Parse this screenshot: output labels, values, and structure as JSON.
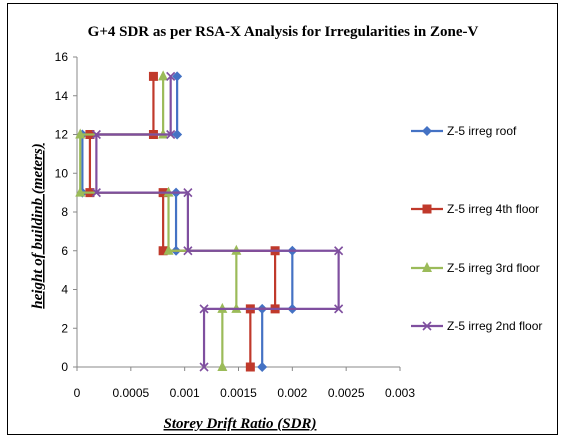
{
  "chart_data": {
    "type": "line",
    "title": "G+4 SDR as per RSA-X Analysis for Irregularities in Zone-V",
    "xlabel": "Storey Drift Ratio (SDR)",
    "ylabel": "height of buildinb (meters)",
    "xlim": [
      0,
      0.003
    ],
    "ylim": [
      0,
      16
    ],
    "x_ticks": [
      "0",
      "0.0005",
      "0.001",
      "0.0015",
      "0.002",
      "0.0025",
      "0.003"
    ],
    "y_ticks": [
      "0",
      "2",
      "4",
      "6",
      "8",
      "10",
      "12",
      "14",
      "16"
    ],
    "grid": false,
    "legend_position": "right",
    "series": [
      {
        "name": "Z-5 irreg roof",
        "color": "#4472C4",
        "marker": "diamond",
        "points": [
          [
            0.00172,
            0
          ],
          [
            0.00172,
            3
          ],
          [
            0.002,
            3
          ],
          [
            0.002,
            6
          ],
          [
            0.00092,
            6
          ],
          [
            0.00092,
            9
          ],
          [
            5e-05,
            9
          ],
          [
            5e-05,
            12
          ],
          [
            0.00093,
            12
          ],
          [
            0.00093,
            15
          ]
        ]
      },
      {
        "name": "Z-5 irreg 4th floor",
        "color": "#C0392B",
        "marker": "square",
        "points": [
          [
            0.00161,
            0
          ],
          [
            0.00161,
            3
          ],
          [
            0.00184,
            3
          ],
          [
            0.00184,
            6
          ],
          [
            0.0008,
            6
          ],
          [
            0.0008,
            9
          ],
          [
            0.00012,
            9
          ],
          [
            0.00012,
            12
          ],
          [
            0.00071,
            12
          ],
          [
            0.00071,
            15
          ]
        ]
      },
      {
        "name": "Z-5 irreg 3rd floor",
        "color": "#9BBB59",
        "marker": "triangle",
        "points": [
          [
            0.00135,
            0
          ],
          [
            0.00135,
            3
          ],
          [
            0.00148,
            3
          ],
          [
            0.00148,
            6
          ],
          [
            0.00085,
            6
          ],
          [
            0.00085,
            9
          ],
          [
            3e-05,
            9
          ],
          [
            3e-05,
            12
          ],
          [
            0.0008,
            12
          ],
          [
            0.0008,
            15
          ]
        ]
      },
      {
        "name": "Z-5 irreg 2nd floor",
        "color": "#7F4F9F",
        "marker": "x",
        "points": [
          [
            0.00118,
            0
          ],
          [
            0.00118,
            3
          ],
          [
            0.00243,
            3
          ],
          [
            0.00243,
            6
          ],
          [
            0.00103,
            6
          ],
          [
            0.00103,
            9
          ],
          [
            0.00018,
            9
          ],
          [
            0.00018,
            12
          ],
          [
            0.00087,
            12
          ],
          [
            0.00087,
            15
          ]
        ]
      }
    ]
  }
}
